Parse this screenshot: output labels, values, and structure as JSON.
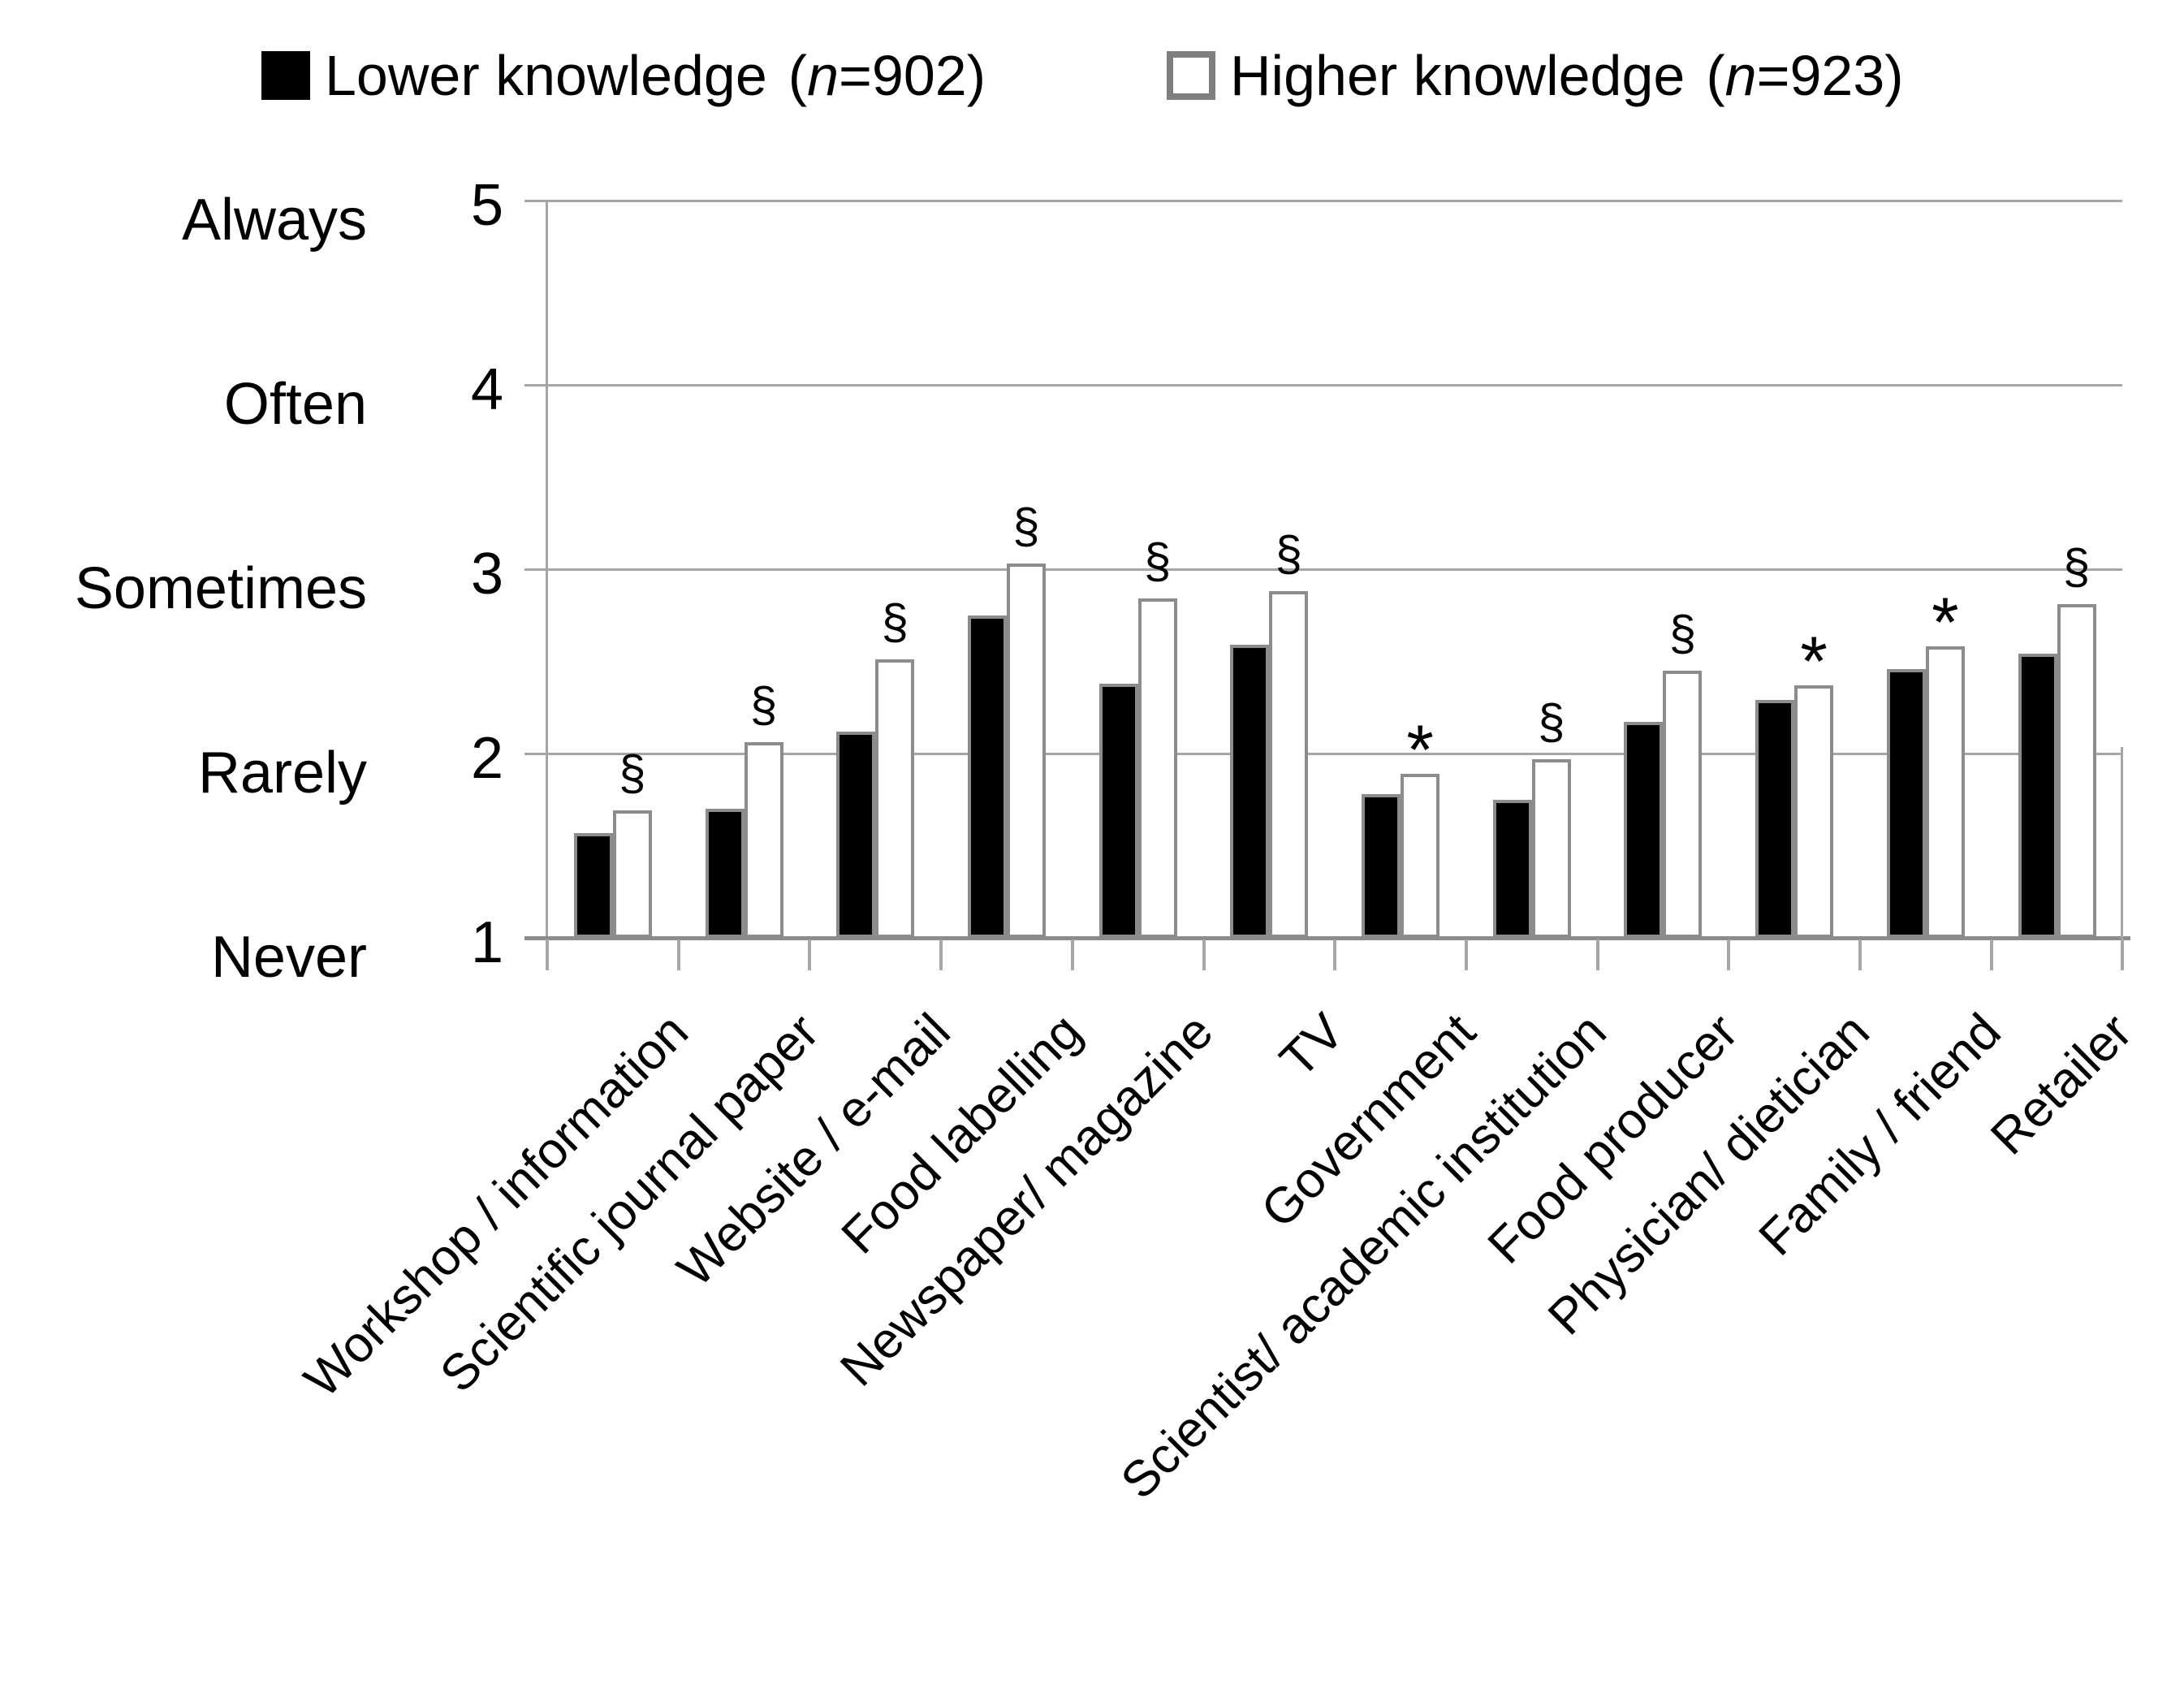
{
  "legend": [
    {
      "label": "Lower knowledge",
      "n_text": "(n=902)",
      "swatch": "black"
    },
    {
      "label": "Higher knowledge",
      "n_text": "(n=923)",
      "swatch": "white"
    }
  ],
  "chart_data": {
    "type": "bar",
    "title": "",
    "xlabel": "",
    "ylabel": "",
    "ylim": [
      1,
      5
    ],
    "grid": true,
    "legend_position": "top",
    "categories": [
      "Workshop / information",
      "Scientific journal paper",
      "Website / e-mail",
      "Food labelling",
      "Newspaper/ magazine",
      "TV",
      "Government",
      "Scientist/ academic institution",
      "Food producer",
      "Physician/ dietician",
      "Family / friend",
      "Retailer"
    ],
    "series": [
      {
        "name": "Lower knowledge (n=902)",
        "values": [
          1.57,
          1.7,
          2.12,
          2.75,
          2.38,
          2.59,
          1.78,
          1.75,
          2.17,
          2.29,
          2.46,
          2.54
        ]
      },
      {
        "name": "Higher knowledge (n=923)",
        "values": [
          1.69,
          2.06,
          2.51,
          3.03,
          2.84,
          2.88,
          1.89,
          1.97,
          2.45,
          2.37,
          2.58,
          2.81
        ]
      }
    ],
    "significance_marks": [
      "§",
      "§",
      "§",
      "§",
      "§",
      "§",
      "*",
      "§",
      "§",
      "*",
      "*",
      "§"
    ],
    "y_ticks": [
      {
        "value": 5,
        "number": "5",
        "word": "Always"
      },
      {
        "value": 4,
        "number": "4",
        "word": "Often"
      },
      {
        "value": 3,
        "number": "3",
        "word": "Sometimes"
      },
      {
        "value": 2,
        "number": "2",
        "word": "Rarely"
      },
      {
        "value": 1,
        "number": "1",
        "word": "Never"
      }
    ]
  }
}
